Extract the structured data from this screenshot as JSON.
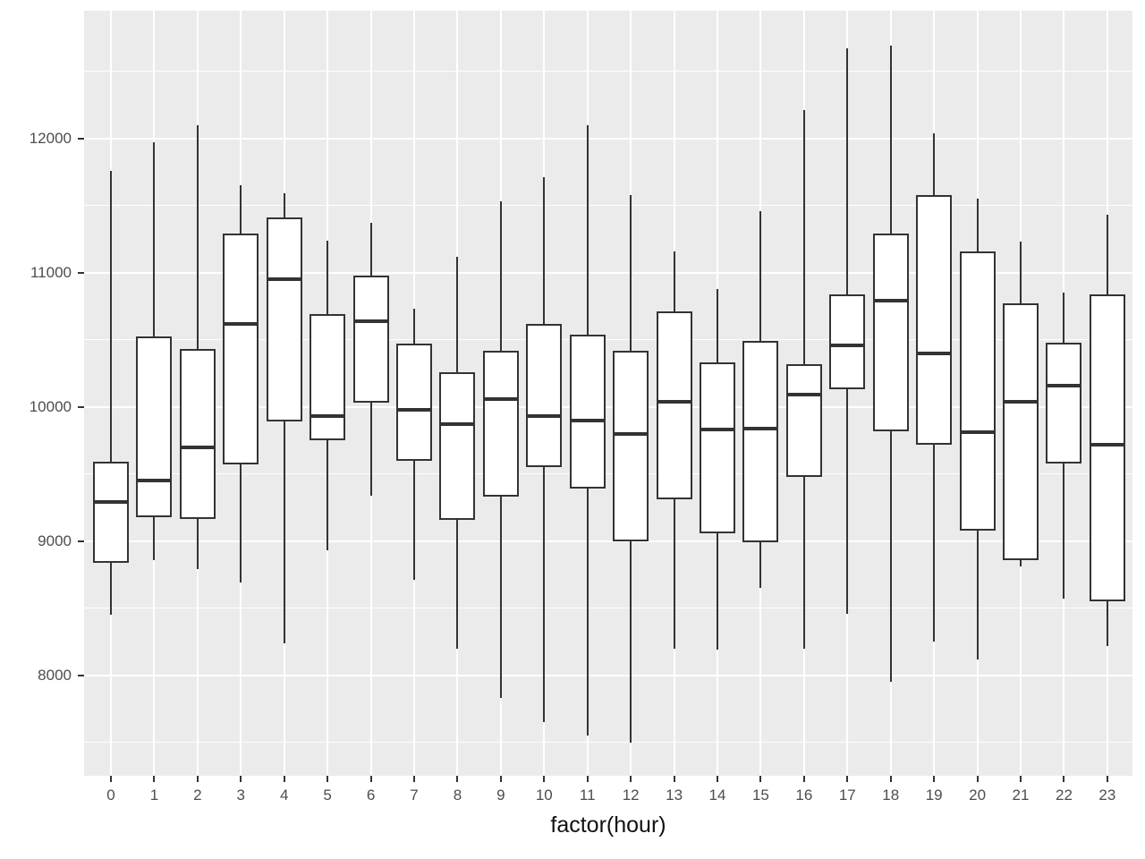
{
  "figure": {
    "background": "#FFFFFF",
    "panel_background": "#EBEBEB",
    "gridline_color": "#FFFFFF",
    "box_fill": "#FFFFFF",
    "box_stroke": "#333333",
    "axis_text_color": "#4D4D4D",
    "axis_title_color": "#111111"
  },
  "chart_data": {
    "type": "boxplot",
    "title": "",
    "xlabel": "factor(hour)",
    "ylabel": "",
    "x_tick_labels": [
      "0",
      "1",
      "2",
      "3",
      "4",
      "5",
      "6",
      "7",
      "8",
      "9",
      "10",
      "11",
      "12",
      "13",
      "14",
      "15",
      "16",
      "17",
      "18",
      "19",
      "20",
      "21",
      "22",
      "23"
    ],
    "y_ticks": [
      8000,
      9000,
      10000,
      11000,
      12000
    ],
    "y_tick_labels": [
      "8000",
      "9000",
      "10000",
      "11000",
      "12000"
    ],
    "y_minor_gridlines": [
      7500,
      8500,
      9500,
      10500,
      11500,
      12500
    ],
    "ylim": [
      7250,
      12950
    ],
    "grid": "white major and minor horizontal gridlines plus one vertical gridline per category, on grey panel",
    "legend": "none",
    "series": [
      {
        "hour": "0",
        "lower": 8450,
        "q1": 8840,
        "median": 9290,
        "q3": 9590,
        "upper": 11760
      },
      {
        "hour": "1",
        "lower": 8855,
        "q1": 9180,
        "median": 9450,
        "q3": 10525,
        "upper": 11970
      },
      {
        "hour": "2",
        "lower": 8790,
        "q1": 9165,
        "median": 9700,
        "q3": 10430,
        "upper": 12100
      },
      {
        "hour": "3",
        "lower": 8690,
        "q1": 9570,
        "median": 10620,
        "q3": 11290,
        "upper": 11650
      },
      {
        "hour": "4",
        "lower": 8240,
        "q1": 9890,
        "median": 10950,
        "q3": 11410,
        "upper": 11590
      },
      {
        "hour": "5",
        "lower": 8930,
        "q1": 9750,
        "median": 9930,
        "q3": 10690,
        "upper": 11240
      },
      {
        "hour": "6",
        "lower": 9340,
        "q1": 10030,
        "median": 10640,
        "q3": 10980,
        "upper": 11370
      },
      {
        "hour": "7",
        "lower": 8710,
        "q1": 9600,
        "median": 9980,
        "q3": 10470,
        "upper": 10730
      },
      {
        "hour": "8",
        "lower": 8200,
        "q1": 9160,
        "median": 9870,
        "q3": 10260,
        "upper": 11120
      },
      {
        "hour": "9",
        "lower": 7830,
        "q1": 9330,
        "median": 10060,
        "q3": 10420,
        "upper": 11530
      },
      {
        "hour": "10",
        "lower": 7650,
        "q1": 9550,
        "median": 9930,
        "q3": 10620,
        "upper": 11710
      },
      {
        "hour": "11",
        "lower": 7550,
        "q1": 9390,
        "median": 9900,
        "q3": 10540,
        "upper": 12100
      },
      {
        "hour": "12",
        "lower": 7500,
        "q1": 9000,
        "median": 9800,
        "q3": 10420,
        "upper": 11580
      },
      {
        "hour": "13",
        "lower": 8200,
        "q1": 9310,
        "median": 10040,
        "q3": 10710,
        "upper": 11160
      },
      {
        "hour": "14",
        "lower": 8190,
        "q1": 9060,
        "median": 9830,
        "q3": 10330,
        "upper": 10880
      },
      {
        "hour": "15",
        "lower": 8650,
        "q1": 8990,
        "median": 9840,
        "q3": 10490,
        "upper": 11460
      },
      {
        "hour": "16",
        "lower": 8200,
        "q1": 9480,
        "median": 10090,
        "q3": 10320,
        "upper": 12210
      },
      {
        "hour": "17",
        "lower": 8460,
        "q1": 10130,
        "median": 10460,
        "q3": 10840,
        "upper": 12670
      },
      {
        "hour": "18",
        "lower": 7950,
        "q1": 9820,
        "median": 10790,
        "q3": 11290,
        "upper": 12690
      },
      {
        "hour": "19",
        "lower": 8250,
        "q1": 9720,
        "median": 10400,
        "q3": 11580,
        "upper": 12040
      },
      {
        "hour": "20",
        "lower": 8120,
        "q1": 9080,
        "median": 9810,
        "q3": 11160,
        "upper": 11550
      },
      {
        "hour": "21",
        "lower": 8810,
        "q1": 8860,
        "median": 10040,
        "q3": 10770,
        "upper": 11230
      },
      {
        "hour": "22",
        "lower": 8570,
        "q1": 9580,
        "median": 10160,
        "q3": 10480,
        "upper": 10850
      },
      {
        "hour": "23",
        "lower": 8220,
        "q1": 8550,
        "median": 9720,
        "q3": 10840,
        "upper": 11430
      }
    ]
  }
}
